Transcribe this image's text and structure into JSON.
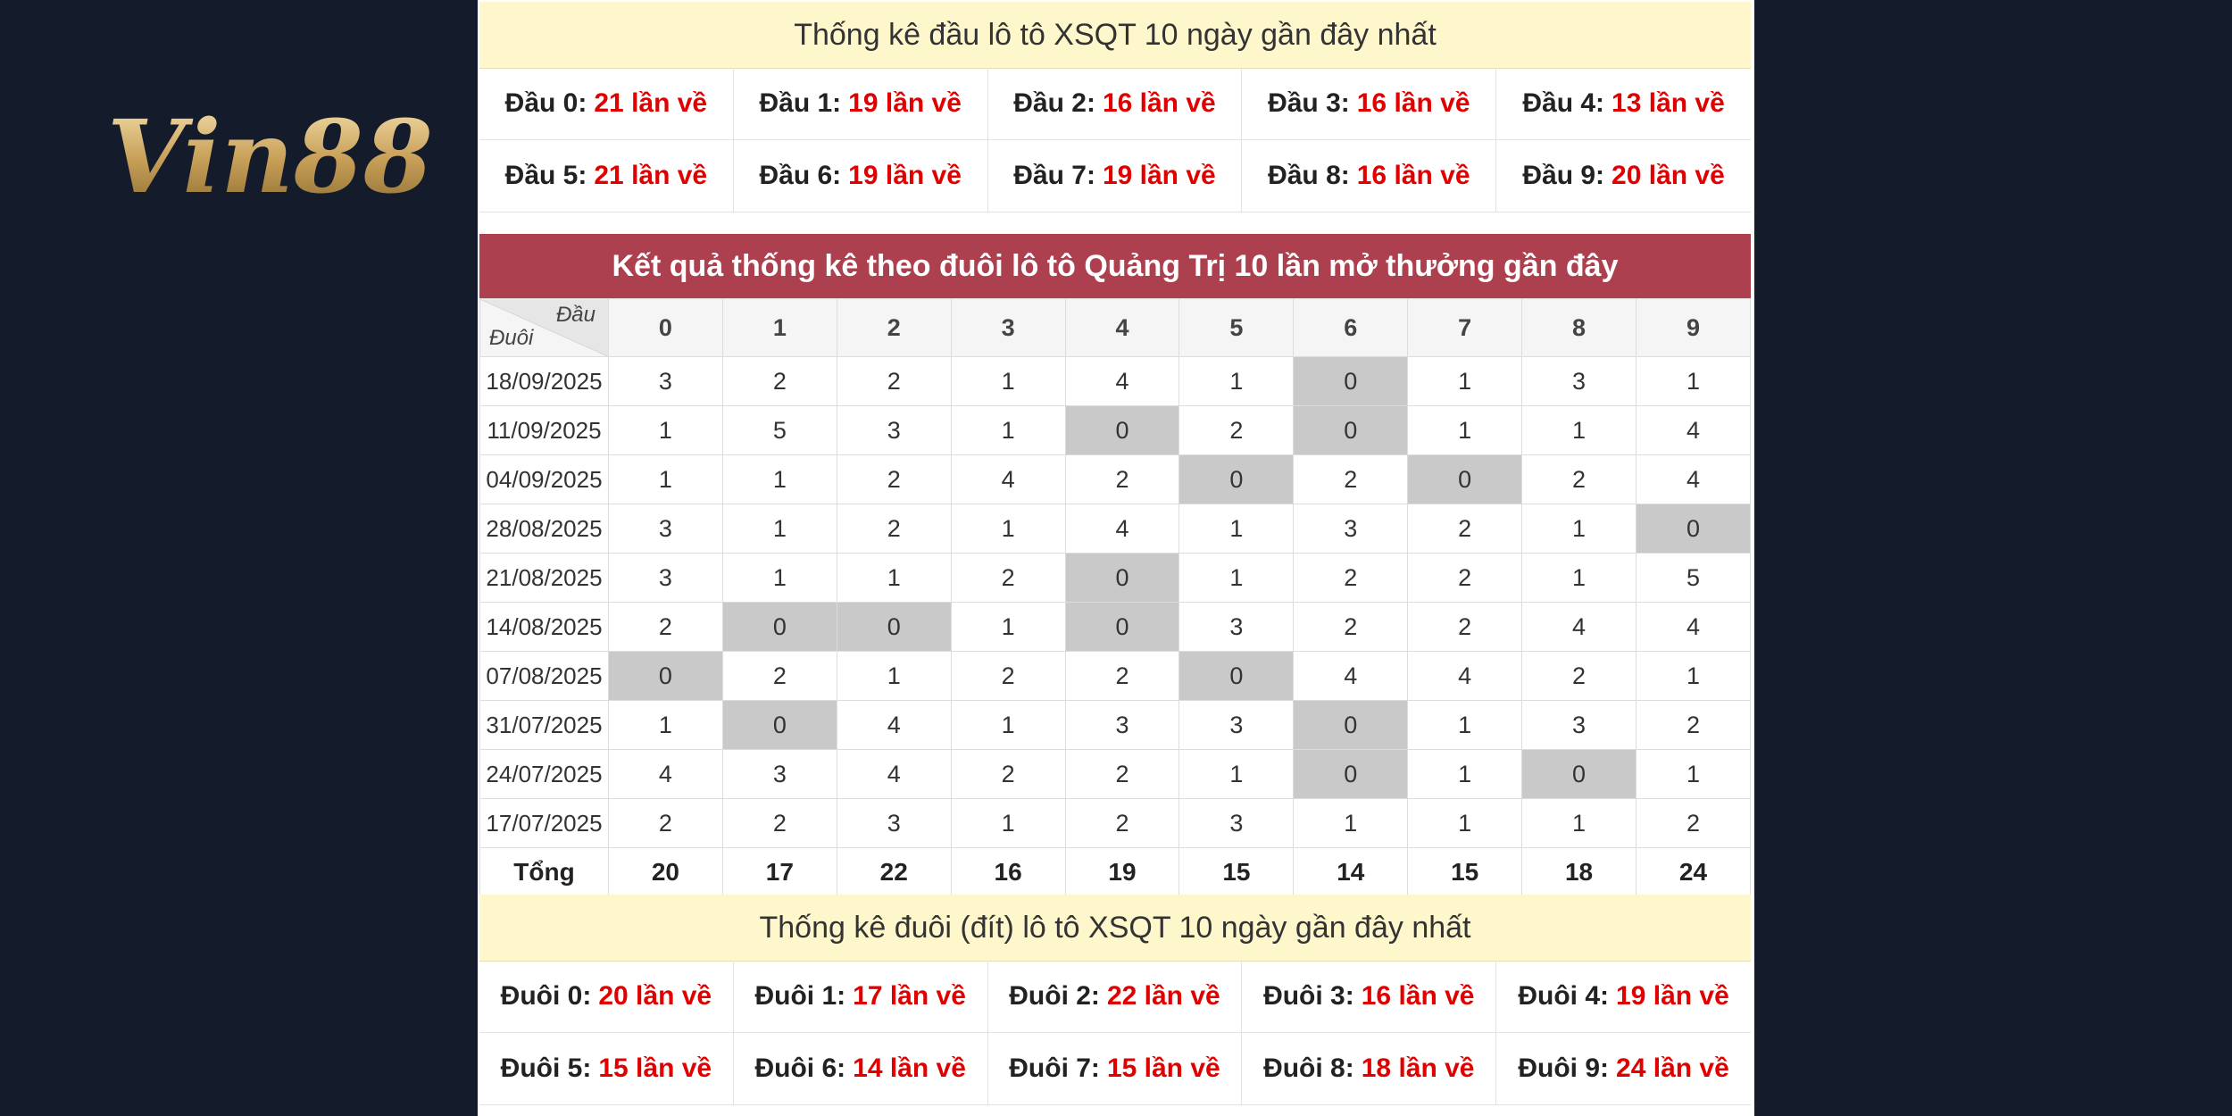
{
  "brand": {
    "name": "Vin88"
  },
  "head_summary": {
    "title": "Thống kê đầu lô tô XSQT 10 ngày gần đây nhất",
    "items": [
      {
        "label": "Đầu 0:",
        "count": "21 lần về"
      },
      {
        "label": "Đầu 1:",
        "count": "19 lần về"
      },
      {
        "label": "Đầu 2:",
        "count": "16 lần về"
      },
      {
        "label": "Đầu 3:",
        "count": "16 lần về"
      },
      {
        "label": "Đầu 4:",
        "count": "13 lần về"
      },
      {
        "label": "Đầu 5:",
        "count": "21 lần về"
      },
      {
        "label": "Đầu 6:",
        "count": "19 lần về"
      },
      {
        "label": "Đầu 7:",
        "count": "19 lần về"
      },
      {
        "label": "Đầu 8:",
        "count": "16 lần về"
      },
      {
        "label": "Đầu 9:",
        "count": "20 lần về"
      }
    ]
  },
  "tail_table": {
    "banner": "Kết quả thống kê theo đuôi lô tô Quảng Trị 10 lần mở thưởng gần đây",
    "corner_top": "Đầu",
    "corner_bottom": "Đuôi",
    "columns": [
      "0",
      "1",
      "2",
      "3",
      "4",
      "5",
      "6",
      "7",
      "8",
      "9"
    ],
    "rows": [
      {
        "date": "18/09/2025",
        "values": [
          "3",
          "2",
          "2",
          "1",
          "4",
          "1",
          "0",
          "1",
          "3",
          "1"
        ]
      },
      {
        "date": "11/09/2025",
        "values": [
          "1",
          "5",
          "3",
          "1",
          "0",
          "2",
          "0",
          "1",
          "1",
          "4"
        ]
      },
      {
        "date": "04/09/2025",
        "values": [
          "1",
          "1",
          "2",
          "4",
          "2",
          "0",
          "2",
          "0",
          "2",
          "4"
        ]
      },
      {
        "date": "28/08/2025",
        "values": [
          "3",
          "1",
          "2",
          "1",
          "4",
          "1",
          "3",
          "2",
          "1",
          "0"
        ]
      },
      {
        "date": "21/08/2025",
        "values": [
          "3",
          "1",
          "1",
          "2",
          "0",
          "1",
          "2",
          "2",
          "1",
          "5"
        ]
      },
      {
        "date": "14/08/2025",
        "values": [
          "2",
          "0",
          "0",
          "1",
          "0",
          "3",
          "2",
          "2",
          "4",
          "4"
        ]
      },
      {
        "date": "07/08/2025",
        "values": [
          "0",
          "2",
          "1",
          "2",
          "2",
          "0",
          "4",
          "4",
          "2",
          "1"
        ]
      },
      {
        "date": "31/07/2025",
        "values": [
          "1",
          "0",
          "4",
          "1",
          "3",
          "3",
          "0",
          "1",
          "3",
          "2"
        ]
      },
      {
        "date": "24/07/2025",
        "values": [
          "4",
          "3",
          "4",
          "2",
          "2",
          "1",
          "0",
          "1",
          "0",
          "1"
        ]
      },
      {
        "date": "17/07/2025",
        "values": [
          "2",
          "2",
          "3",
          "1",
          "2",
          "3",
          "1",
          "1",
          "1",
          "2"
        ]
      }
    ],
    "total_label": "Tổng",
    "totals": [
      "20",
      "17",
      "22",
      "16",
      "19",
      "15",
      "14",
      "15",
      "18",
      "24"
    ]
  },
  "tail_summary": {
    "title": "Thống kê đuôi (đít) lô tô XSQT 10 ngày gần đây nhất",
    "items": [
      {
        "label": "Đuôi 0:",
        "count": "20 lần về"
      },
      {
        "label": "Đuôi 1:",
        "count": "17 lần về"
      },
      {
        "label": "Đuôi 2:",
        "count": "22 lần về"
      },
      {
        "label": "Đuôi 3:",
        "count": "16 lần về"
      },
      {
        "label": "Đuôi 4:",
        "count": "19 lần về"
      },
      {
        "label": "Đuôi 5:",
        "count": "15 lần về"
      },
      {
        "label": "Đuôi 6:",
        "count": "14 lần về"
      },
      {
        "label": "Đuôi 7:",
        "count": "15 lần về"
      },
      {
        "label": "Đuôi 8:",
        "count": "18 lần về"
      },
      {
        "label": "Đuôi 9:",
        "count": "24 lần về"
      }
    ]
  }
}
